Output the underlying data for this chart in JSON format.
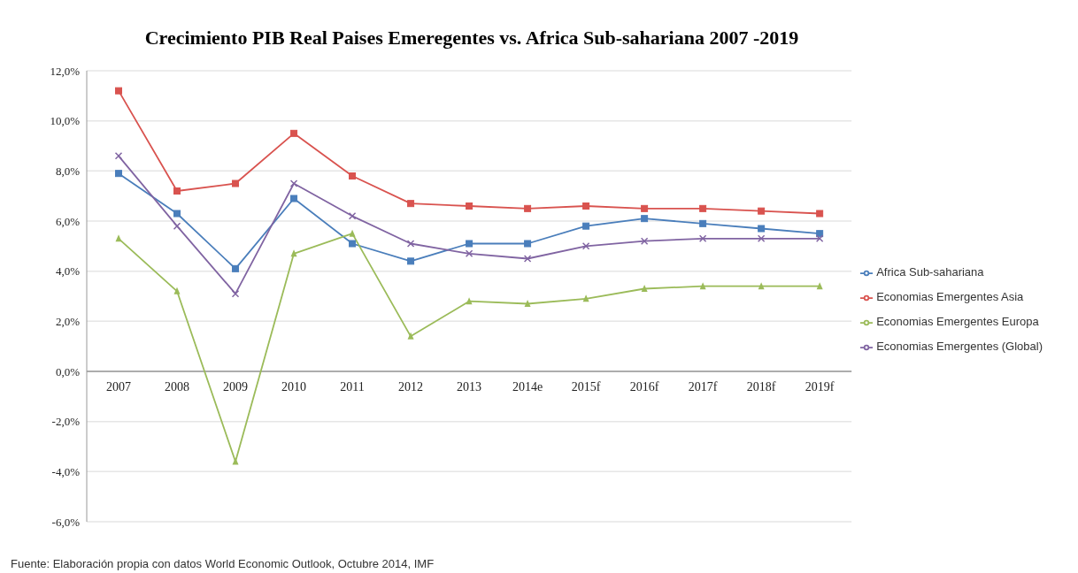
{
  "chart_data": {
    "type": "line",
    "title": "Crecimiento PIB Real Paises Emeregentes vs. Africa Sub-sahariana 2007 -2019",
    "categories": [
      "2007",
      "2008",
      "2009",
      "2010",
      "2011",
      "2012",
      "2013",
      "2014e",
      "2015f",
      "2016f",
      "2017f",
      "2018f",
      "2019f"
    ],
    "series": [
      {
        "name": "Africa Sub-sahariana",
        "color": "#4a7ebb",
        "marker": "square",
        "values": [
          7.9,
          6.3,
          4.1,
          6.9,
          5.1,
          4.4,
          5.1,
          5.1,
          5.8,
          6.1,
          5.9,
          5.7,
          5.5
        ]
      },
      {
        "name": "Economias Emergentes Asia",
        "color": "#d9534f",
        "marker": "square",
        "values": [
          11.2,
          7.2,
          7.5,
          9.5,
          7.8,
          6.7,
          6.6,
          6.5,
          6.6,
          6.5,
          6.5,
          6.4,
          6.3
        ]
      },
      {
        "name": "Economias Emergentes Europa",
        "color": "#9bbb59",
        "marker": "triangle",
        "values": [
          5.3,
          3.2,
          -3.6,
          4.7,
          5.5,
          1.4,
          2.8,
          2.7,
          2.9,
          3.3,
          3.4,
          3.4,
          3.4
        ]
      },
      {
        "name": "Economias Emergentes (Global)",
        "color": "#8064a2",
        "marker": "cross",
        "values": [
          8.6,
          5.8,
          3.1,
          7.5,
          6.2,
          5.1,
          4.7,
          4.5,
          5.0,
          5.2,
          5.3,
          5.3,
          5.3
        ]
      }
    ],
    "ylim": [
      -6,
      12
    ],
    "yticks": [
      {
        "value": -6,
        "label": "-6,0%"
      },
      {
        "value": -4,
        "label": "-4,0%"
      },
      {
        "value": -2,
        "label": "-2,0%"
      },
      {
        "value": 0,
        "label": "0,0%"
      },
      {
        "value": 2,
        "label": "2,0%"
      },
      {
        "value": 4,
        "label": "4,0%"
      },
      {
        "value": 6,
        "label": "6,0%"
      },
      {
        "value": 8,
        "label": "8,0%"
      },
      {
        "value": 10,
        "label": "10,0%"
      },
      {
        "value": 12,
        "label": "12,0%"
      }
    ],
    "grid": "y",
    "legend": "right",
    "line_style": "solid",
    "annotations": [
      "Fuente: Elaboración propia con datos World Economic Outlook, Octubre 2014, IMF"
    ]
  }
}
